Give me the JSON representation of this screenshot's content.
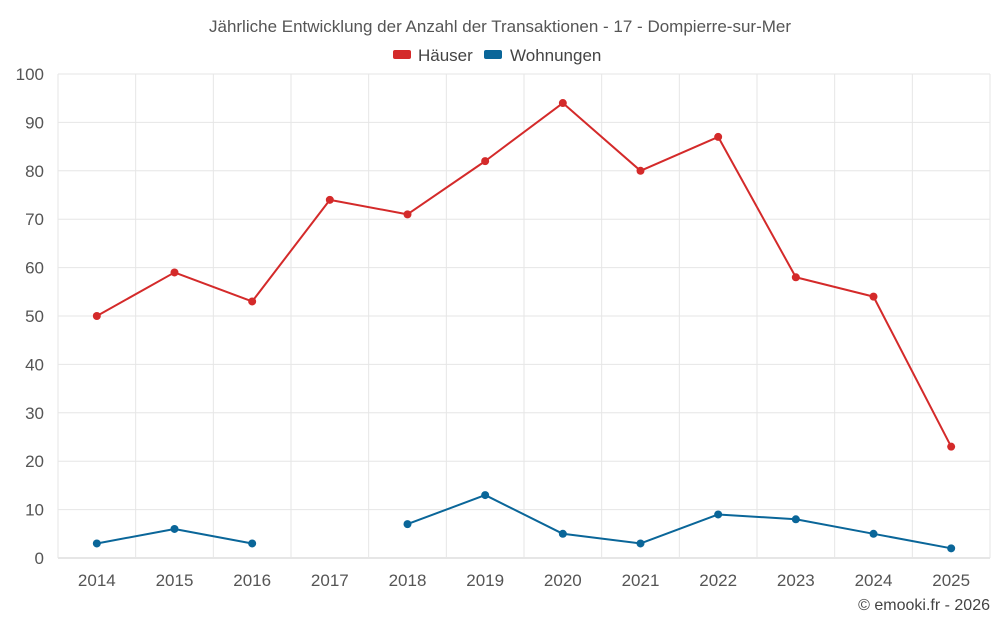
{
  "chart_data": {
    "type": "line",
    "title": "Jährliche Entwicklung der Anzahl der Transaktionen - 17 - Dompierre-sur-Mer",
    "categories": [
      "2014",
      "2015",
      "2016",
      "2017",
      "2018",
      "2019",
      "2020",
      "2021",
      "2022",
      "2023",
      "2024",
      "2025"
    ],
    "series": [
      {
        "name": "Häuser",
        "color": "#d42a2a",
        "values": [
          50,
          59,
          53,
          74,
          71,
          82,
          94,
          80,
          87,
          58,
          54,
          23
        ]
      },
      {
        "name": "Wohnungen",
        "color": "#0a6699",
        "values": [
          3,
          6,
          3,
          null,
          7,
          13,
          5,
          3,
          9,
          8,
          5,
          2
        ]
      }
    ],
    "yticks": [
      0,
      10,
      20,
      30,
      40,
      50,
      60,
      70,
      80,
      90,
      100
    ],
    "ylim": [
      0,
      100
    ],
    "grid": true,
    "legend": "top-center",
    "xlabel": "",
    "ylabel": ""
  },
  "credit": "© emooki.fr - 2026"
}
